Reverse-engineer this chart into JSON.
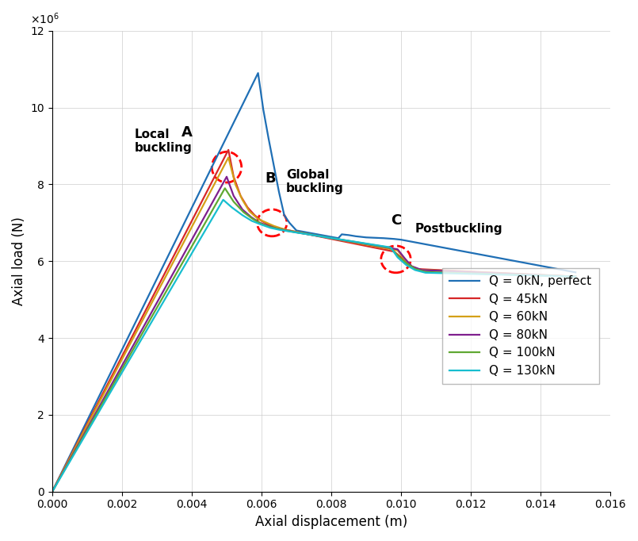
{
  "title": "",
  "xlabel": "Axial displacement (m)",
  "ylabel": "Axial load (N)",
  "xlim": [
    0,
    0.016
  ],
  "ylim": [
    0,
    12000000
  ],
  "colors": {
    "Q0": "#1f6fb5",
    "Q45": "#d62728",
    "Q60": "#d4a017",
    "Q80": "#7f1f8e",
    "Q100": "#5fa832",
    "Q130": "#17becf"
  },
  "legend_labels": [
    "Q = 0kN, perfect",
    "Q = 45kN",
    "Q = 60kN",
    "Q = 80kN",
    "Q = 100kN",
    "Q = 130kN"
  ]
}
